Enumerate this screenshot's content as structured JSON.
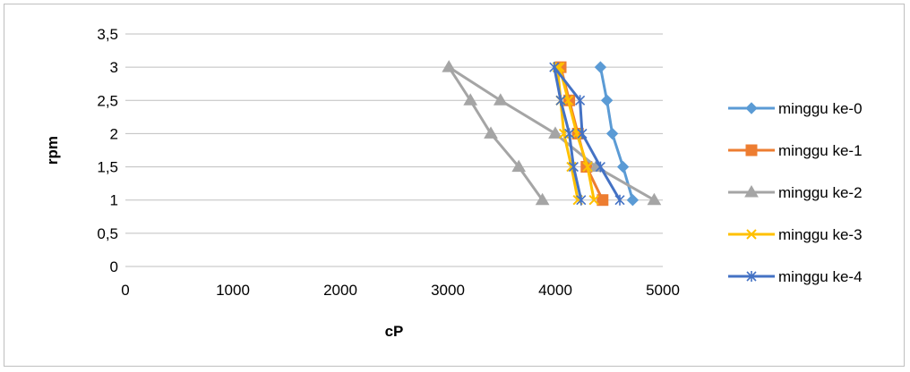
{
  "chart_data": {
    "type": "scatter",
    "title": "",
    "xlabel": "cP",
    "ylabel": "rpm",
    "xlim": [
      0,
      5000
    ],
    "ylim": [
      0,
      3.5
    ],
    "x_ticks": [
      "0",
      "1000",
      "2000",
      "3000",
      "4000",
      "5000"
    ],
    "y_ticks": [
      "0",
      "0,5",
      "1",
      "1,5",
      "2",
      "2,5",
      "3",
      "3,5"
    ],
    "grid": "horizontal",
    "legend_position": "right",
    "series": [
      {
        "name": "minggu ke-0",
        "color": "#5B9BD5",
        "marker": "diamond",
        "points": [
          [
            4720,
            1
          ],
          [
            4630,
            1.5
          ],
          [
            4530,
            2
          ],
          [
            4480,
            2.5
          ],
          [
            4420,
            3
          ]
        ]
      },
      {
        "name": "minggu ke-1",
        "color": "#ED7D31",
        "marker": "square",
        "points": [
          [
            4440,
            1
          ],
          [
            4290,
            1.5
          ],
          [
            4210,
            2
          ],
          [
            4130,
            2.5
          ],
          [
            4050,
            3
          ]
        ]
      },
      {
        "name": "minggu ke-2",
        "color": "#A5A5A5",
        "marker": "triangle",
        "points": [
          [
            3880,
            1
          ],
          [
            3660,
            1.5
          ],
          [
            3400,
            2
          ],
          [
            3210,
            2.5
          ],
          [
            3010,
            3
          ],
          [
            3490,
            2.5
          ],
          [
            4000,
            2
          ],
          [
            4380,
            1.5
          ],
          [
            4920,
            1
          ]
        ]
      },
      {
        "name": "minggu ke-3",
        "color": "#FFC000",
        "marker": "x",
        "points": [
          [
            4210,
            1
          ],
          [
            4150,
            1.5
          ],
          [
            4080,
            2
          ],
          [
            4050,
            2.5
          ],
          [
            4020,
            3
          ],
          [
            4040,
            3
          ],
          [
            4120,
            2.5
          ],
          [
            4200,
            2
          ],
          [
            4300,
            1.5
          ],
          [
            4360,
            1
          ]
        ]
      },
      {
        "name": "minggu ke-4",
        "color": "#4472C4",
        "marker": "star",
        "points": [
          [
            4600,
            1
          ],
          [
            4420,
            1.5
          ],
          [
            4250,
            2
          ],
          [
            4230,
            2.5
          ],
          [
            3990,
            3
          ],
          [
            4050,
            2.5
          ],
          [
            4130,
            2
          ],
          [
            4170,
            1.5
          ],
          [
            4240,
            1
          ]
        ]
      }
    ]
  }
}
